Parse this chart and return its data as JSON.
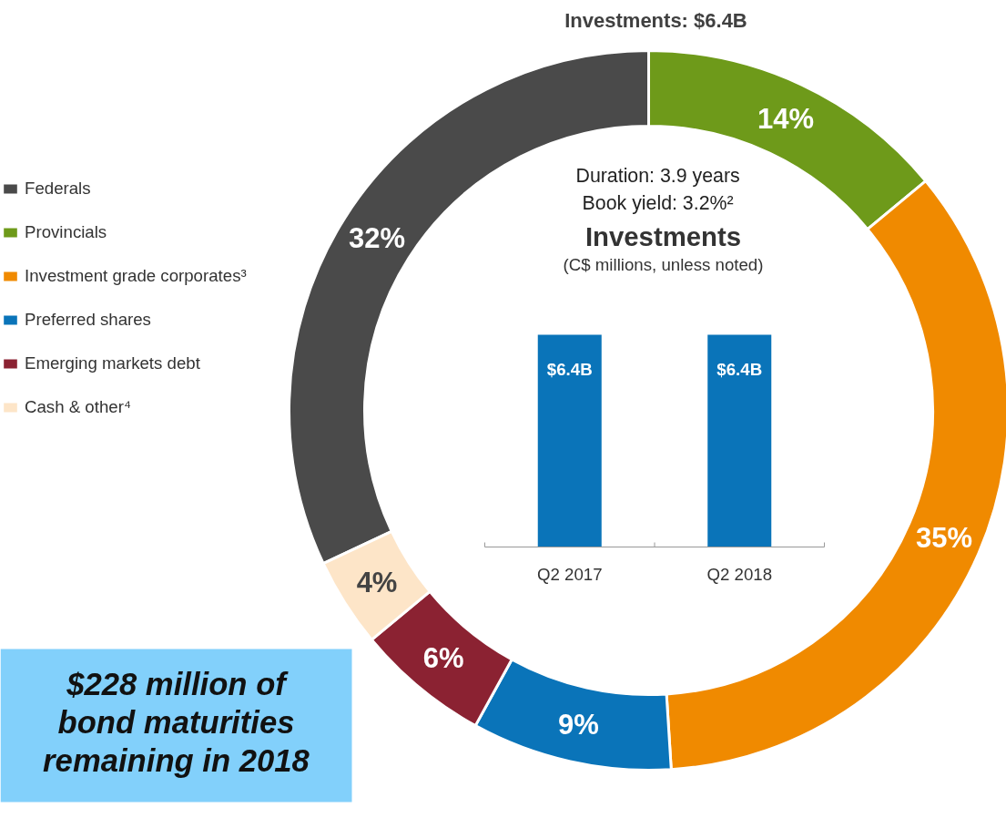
{
  "chart_data": [
    {
      "type": "donut",
      "title": "Investments: $6.4B",
      "categories": [
        "Federals",
        "Provincials",
        "Investment grade corporates³",
        "Preferred shares",
        "Emerging markets debt",
        "Cash & other⁴"
      ],
      "values": [
        32,
        14,
        35,
        9,
        6,
        4
      ],
      "colors": [
        "#4a4a4a",
        "#6e9a1a",
        "#f08a00",
        "#0a74b9",
        "#8b2232",
        "#fde5c8"
      ],
      "value_labels": [
        "32%",
        "14%",
        "35%",
        "9%",
        "6%",
        "4%"
      ],
      "legend": "left",
      "annotations": [
        "Duration:   3.9 years",
        "Book yield:   3.2%²",
        "$228 million of bond maturities remaining in 2018"
      ]
    },
    {
      "type": "bar",
      "title": "Investments",
      "subtitle": "(C$ millions, unless noted)",
      "categories": [
        "Q2 2017",
        "Q2 2018"
      ],
      "values": [
        6.4,
        6.4
      ],
      "value_labels": [
        "$6.4B",
        "$6.4B"
      ],
      "colors": [
        "#0a74b9",
        "#0a74b9"
      ],
      "tick_labels": "x"
    }
  ]
}
